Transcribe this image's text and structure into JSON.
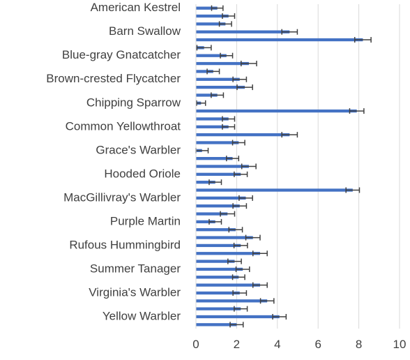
{
  "chart_data": {
    "type": "bar",
    "orientation": "horizontal",
    "title": "",
    "xlabel": "",
    "ylabel": "",
    "xlim": [
      0,
      10
    ],
    "x_ticks": [
      0,
      2,
      4,
      6,
      8,
      10
    ],
    "grid": "vertical",
    "legend": "none",
    "bar_color": "#4472c4",
    "error_bar_color": "#404040",
    "gridline_color": "#d9d9d9",
    "categories": [
      {
        "name": "American Kestrel",
        "value": 1.05,
        "error": 0.28,
        "label": "American Kestrel"
      },
      {
        "name": "c02",
        "value": 1.6,
        "error": 0.3,
        "label": ""
      },
      {
        "name": "c03",
        "value": 1.45,
        "error": 0.3,
        "label": ""
      },
      {
        "name": "Barn Swallow",
        "value": 4.6,
        "error": 0.38,
        "label": "Barn Swallow"
      },
      {
        "name": "c05",
        "value": 8.2,
        "error": 0.4,
        "label": ""
      },
      {
        "name": "c06",
        "value": 0.4,
        "error": 0.35,
        "label": ""
      },
      {
        "name": "Blue-gray Gnatcatcher",
        "value": 1.5,
        "error": 0.3,
        "label": "Blue-gray Gnatcatcher"
      },
      {
        "name": "c08",
        "value": 2.6,
        "error": 0.38,
        "label": ""
      },
      {
        "name": "c09",
        "value": 0.85,
        "error": 0.3,
        "label": ""
      },
      {
        "name": "Brown-crested Flycatcher",
        "value": 2.15,
        "error": 0.33,
        "label": "Brown-crested Flycatcher"
      },
      {
        "name": "c11",
        "value": 2.4,
        "error": 0.38,
        "label": ""
      },
      {
        "name": "c12",
        "value": 1.05,
        "error": 0.3,
        "label": ""
      },
      {
        "name": "Chipping Sparrow",
        "value": 0.25,
        "error": 0.22,
        "label": "Chipping Sparrow"
      },
      {
        "name": "c14",
        "value": 7.9,
        "error": 0.35,
        "label": ""
      },
      {
        "name": "c15",
        "value": 1.6,
        "error": 0.3,
        "label": ""
      },
      {
        "name": "Common Yellowthroat",
        "value": 1.6,
        "error": 0.3,
        "label": "Common Yellowthroat"
      },
      {
        "name": "c17",
        "value": 4.6,
        "error": 0.38,
        "label": ""
      },
      {
        "name": "c18",
        "value": 2.1,
        "error": 0.3,
        "label": ""
      },
      {
        "name": "Grace's Warbler",
        "value": 0.3,
        "error": 0.3,
        "label": "Grace's Warbler"
      },
      {
        "name": "c20",
        "value": 1.8,
        "error": 0.3,
        "label": ""
      },
      {
        "name": "c21",
        "value": 2.6,
        "error": 0.35,
        "label": ""
      },
      {
        "name": "Hooded Oriole",
        "value": 2.2,
        "error": 0.32,
        "label": "Hooded Oriole"
      },
      {
        "name": "c23",
        "value": 0.95,
        "error": 0.3,
        "label": ""
      },
      {
        "name": "c24",
        "value": 7.7,
        "error": 0.33,
        "label": ""
      },
      {
        "name": "MacGillivray's Warbler",
        "value": 2.45,
        "error": 0.33,
        "label": "MacGillivray's Warbler"
      },
      {
        "name": "c26",
        "value": 2.15,
        "error": 0.33,
        "label": ""
      },
      {
        "name": "c27",
        "value": 1.55,
        "error": 0.35,
        "label": ""
      },
      {
        "name": "Purple Martin",
        "value": 0.95,
        "error": 0.3,
        "label": "Purple Martin"
      },
      {
        "name": "c29",
        "value": 1.95,
        "error": 0.33,
        "label": ""
      },
      {
        "name": "c30",
        "value": 2.8,
        "error": 0.35,
        "label": ""
      },
      {
        "name": "Rufous Hummingbird",
        "value": 2.2,
        "error": 0.33,
        "label": "Rufous Hummingbird"
      },
      {
        "name": "c32",
        "value": 3.15,
        "error": 0.35,
        "label": ""
      },
      {
        "name": "c33",
        "value": 1.9,
        "error": 0.33,
        "label": ""
      },
      {
        "name": "Summer Tanager",
        "value": 2.3,
        "error": 0.33,
        "label": "Summer Tanager"
      },
      {
        "name": "c35",
        "value": 2.1,
        "error": 0.3,
        "label": ""
      },
      {
        "name": "c36",
        "value": 3.15,
        "error": 0.35,
        "label": ""
      },
      {
        "name": "Virginia's Warbler",
        "value": 2.15,
        "error": 0.33,
        "label": "Virginia's Warbler"
      },
      {
        "name": "c38",
        "value": 3.5,
        "error": 0.33,
        "label": ""
      },
      {
        "name": "c39",
        "value": 2.2,
        "error": 0.32,
        "label": ""
      },
      {
        "name": "Yellow Warbler",
        "value": 4.1,
        "error": 0.33,
        "label": "Yellow Warbler"
      },
      {
        "name": "c41",
        "value": 2.0,
        "error": 0.32,
        "label": ""
      }
    ]
  }
}
